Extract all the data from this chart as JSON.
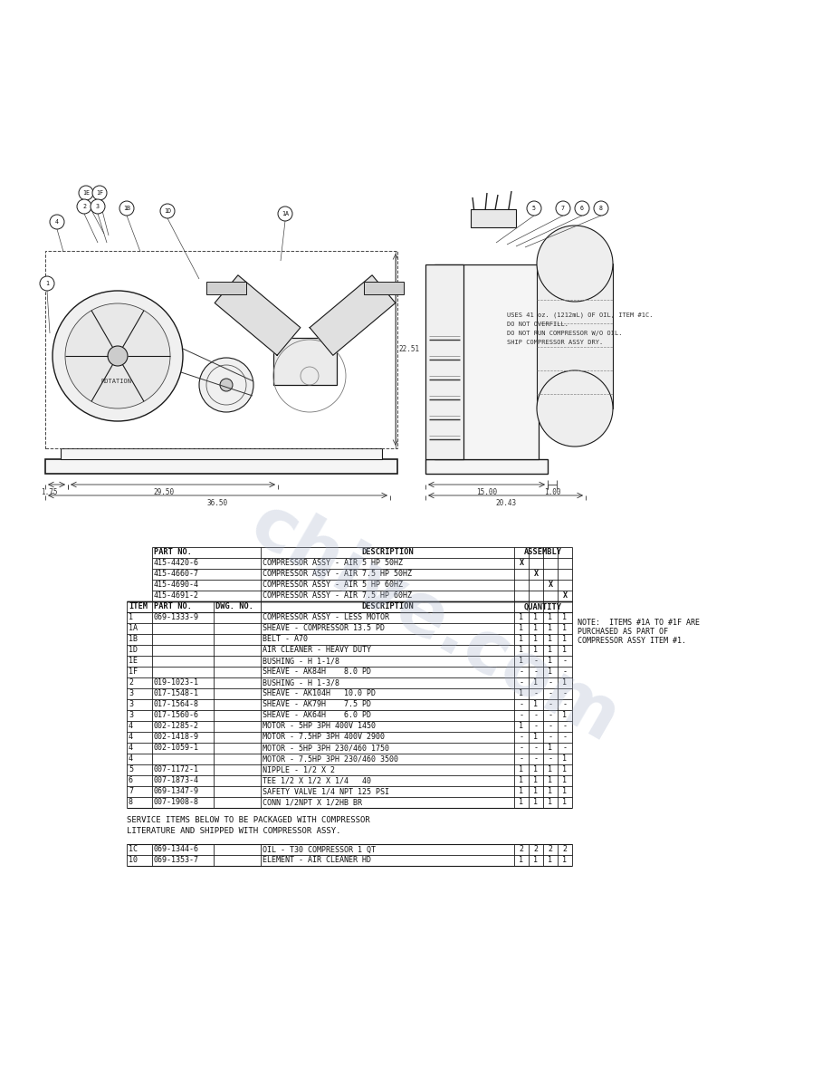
{
  "background_color": "#ffffff",
  "watermark_text": "chive.com",
  "watermark_color": "#a8b4cc",
  "watermark_alpha": 0.3,
  "assembly_data": [
    [
      "415-4420-6",
      "COMPRESSOR ASSY - AIR 5 HP 50HZ",
      "X",
      "",
      "",
      ""
    ],
    [
      "415-4660-7",
      "COMPRESSOR ASSY - AIR 7.5 HP 50HZ",
      "",
      "X",
      "",
      ""
    ],
    [
      "415-4690-4",
      "COMPRESSOR ASSY - AIR 5 HP 60HZ",
      "",
      "",
      "X",
      ""
    ],
    [
      "415-4691-2",
      "COMPRESSOR ASSY - AIR 7.5 HP 60HZ",
      "",
      "",
      "",
      "X"
    ]
  ],
  "main_data": [
    [
      "1",
      "069-1333-9",
      "",
      "COMPRESSOR ASSY - LESS MOTOR",
      "1",
      "1",
      "1",
      "1"
    ],
    [
      "1A",
      "",
      "",
      "SHEAVE - COMPRESSOR 13.5 PD",
      "1",
      "1",
      "1",
      "1"
    ],
    [
      "1B",
      "",
      "",
      "BELT - A70",
      "1",
      "1",
      "1",
      "1"
    ],
    [
      "1D",
      "",
      "",
      "AIR CLEANER - HEAVY DUTY",
      "1",
      "1",
      "1",
      "1"
    ],
    [
      "1E",
      "",
      "",
      "BUSHING - H 1-1/8",
      "1",
      "-",
      "1",
      "-"
    ],
    [
      "1F",
      "",
      "",
      "SHEAVE - AK84H    8.0 PD",
      "-",
      "-",
      "1",
      "-"
    ],
    [
      "2",
      "019-1023-1",
      "",
      "BUSHING - H 1-3/8",
      "-",
      "1",
      "-",
      "1"
    ],
    [
      "3",
      "017-1548-1",
      "",
      "SHEAVE - AK104H   10.0 PD",
      "1",
      "-",
      "-",
      "-"
    ],
    [
      "3",
      "017-1564-8",
      "",
      "SHEAVE - AK79H    7.5 PD",
      "-",
      "1",
      "-",
      "-"
    ],
    [
      "3",
      "017-1560-6",
      "",
      "SHEAVE - AK64H    6.0 PD",
      "-",
      "-",
      "-",
      "1"
    ],
    [
      "4",
      "002-1285-2",
      "",
      "MOTOR - 5HP 3PH 400V 1450",
      "1",
      "-",
      "-",
      "-"
    ],
    [
      "4",
      "002-1418-9",
      "",
      "MOTOR - 7.5HP 3PH 400V 2900",
      "-",
      "1",
      "-",
      "-"
    ],
    [
      "4",
      "002-1059-1",
      "",
      "MOTOR - 5HP 3PH 230/460 1750",
      "-",
      "-",
      "1",
      "-"
    ],
    [
      "4",
      "",
      "",
      "MOTOR - 7.5HP 3PH 230/460 3500",
      "-",
      "-",
      "-",
      "1"
    ],
    [
      "5",
      "007-1172-1",
      "",
      "NIPPLE - 1/2 X 2",
      "1",
      "1",
      "1",
      "1"
    ],
    [
      "6",
      "007-1873-4",
      "",
      "TEE 1/2 X 1/2 X 1/4   40",
      "1",
      "1",
      "1",
      "1"
    ],
    [
      "7",
      "069-1347-9",
      "",
      "SAFETY VALVE 1/4 NPT 125 PSI",
      "1",
      "1",
      "1",
      "1"
    ],
    [
      "8",
      "007-1908-8",
      "",
      "CONN 1/2NPT X 1/2HB BR",
      "1",
      "1",
      "1",
      "1"
    ]
  ],
  "service_text_line1": "SERVICE ITEMS BELOW TO BE PACKAGED WITH COMPRESSOR",
  "service_text_line2": "LITERATURE AND SHIPPED WITH COMPRESSOR ASSY.",
  "service_data": [
    [
      "1C",
      "069-1344-6",
      "",
      "OIL - T30 COMPRESSOR 1 QT",
      "2",
      "2",
      "2",
      "2"
    ],
    [
      "10",
      "069-1353-7",
      "",
      "ELEMENT - AIR CLEANER HD",
      "1",
      "1",
      "1",
      "1"
    ]
  ],
  "note_lines": [
    "NOTE:  ITEMS #1A TO #1F ARE",
    "PURCHASED AS PART OF",
    "COMPRESSOR ASSY ITEM #1."
  ],
  "oil_note_lines": [
    "USES 41 oz. (1212mL) OF OIL, ITEM #1C.",
    "DO NOT OVERFILL.",
    "DO NOT RUN COMPRESSOR W/O OIL.",
    "SHIP COMPRESSOR ASSY DRY."
  ],
  "dim_left_vertical": "22.51",
  "dim_left_1": "1.75",
  "dim_left_2": "29.50",
  "dim_left_total": "36.50",
  "dim_right_1": "15.00",
  "dim_right_2": "1.00",
  "dim_right_total": "20.43",
  "table_font_size": 6.0,
  "header_font_size": 6.2
}
